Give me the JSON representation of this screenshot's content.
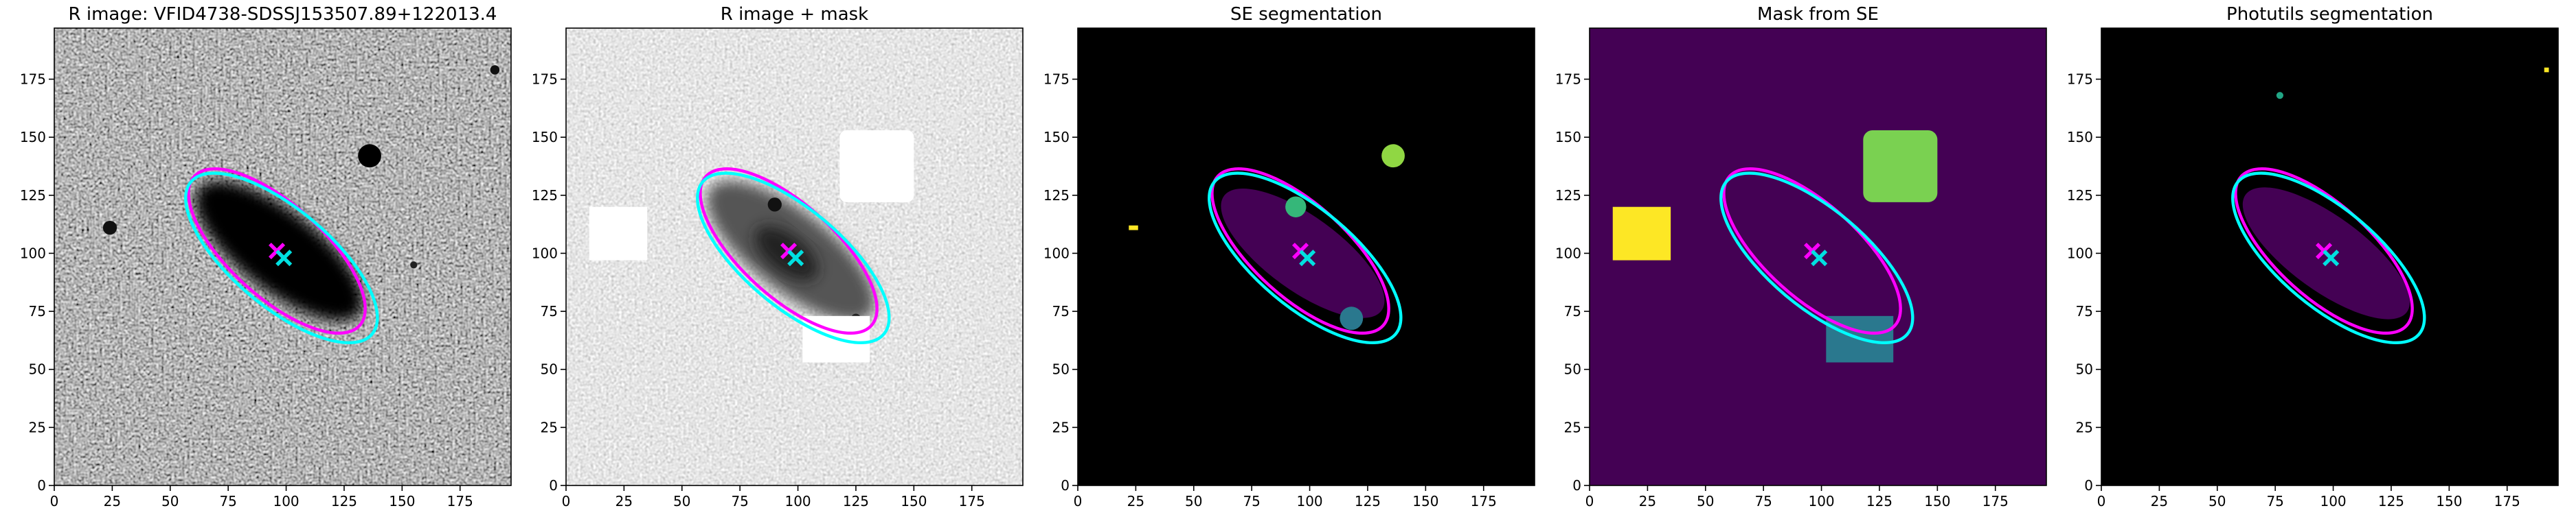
{
  "chart_data": [
    {
      "type": "image",
      "title": "R image: VFID4738-SDSSJ153507.89+122013.4",
      "xlim": [
        0,
        197
      ],
      "ylim": [
        0,
        197
      ],
      "xticks": [
        0,
        25,
        50,
        75,
        100,
        125,
        150,
        175
      ],
      "yticks": [
        0,
        25,
        50,
        75,
        100,
        125,
        150,
        175
      ]
    },
    {
      "type": "image",
      "title": "R image + mask",
      "xlim": [
        0,
        197
      ],
      "ylim": [
        0,
        197
      ],
      "xticks": [
        0,
        25,
        50,
        75,
        100,
        125,
        150,
        175
      ],
      "yticks": [
        0,
        25,
        50,
        75,
        100,
        125,
        150,
        175
      ]
    },
    {
      "type": "image",
      "title": "SE segmentation",
      "xlim": [
        0,
        197
      ],
      "ylim": [
        0,
        197
      ],
      "xticks": [
        0,
        25,
        50,
        75,
        100,
        125,
        150,
        175
      ],
      "yticks": [
        0,
        25,
        50,
        75,
        100,
        125,
        150,
        175
      ]
    },
    {
      "type": "image",
      "title": "Mask from SE",
      "xlim": [
        0,
        197
      ],
      "ylim": [
        0,
        197
      ],
      "xticks": [
        0,
        25,
        50,
        75,
        100,
        125,
        150,
        175
      ],
      "yticks": [
        0,
        25,
        50,
        75,
        100,
        125,
        150,
        175
      ]
    },
    {
      "type": "image",
      "title": "Photutils segmentation",
      "xlim": [
        0,
        197
      ],
      "ylim": [
        0,
        197
      ],
      "xticks": [
        0,
        25,
        50,
        75,
        100,
        125,
        150,
        175
      ],
      "yticks": [
        0,
        25,
        50,
        75,
        100,
        125,
        150,
        175
      ]
    }
  ]
}
